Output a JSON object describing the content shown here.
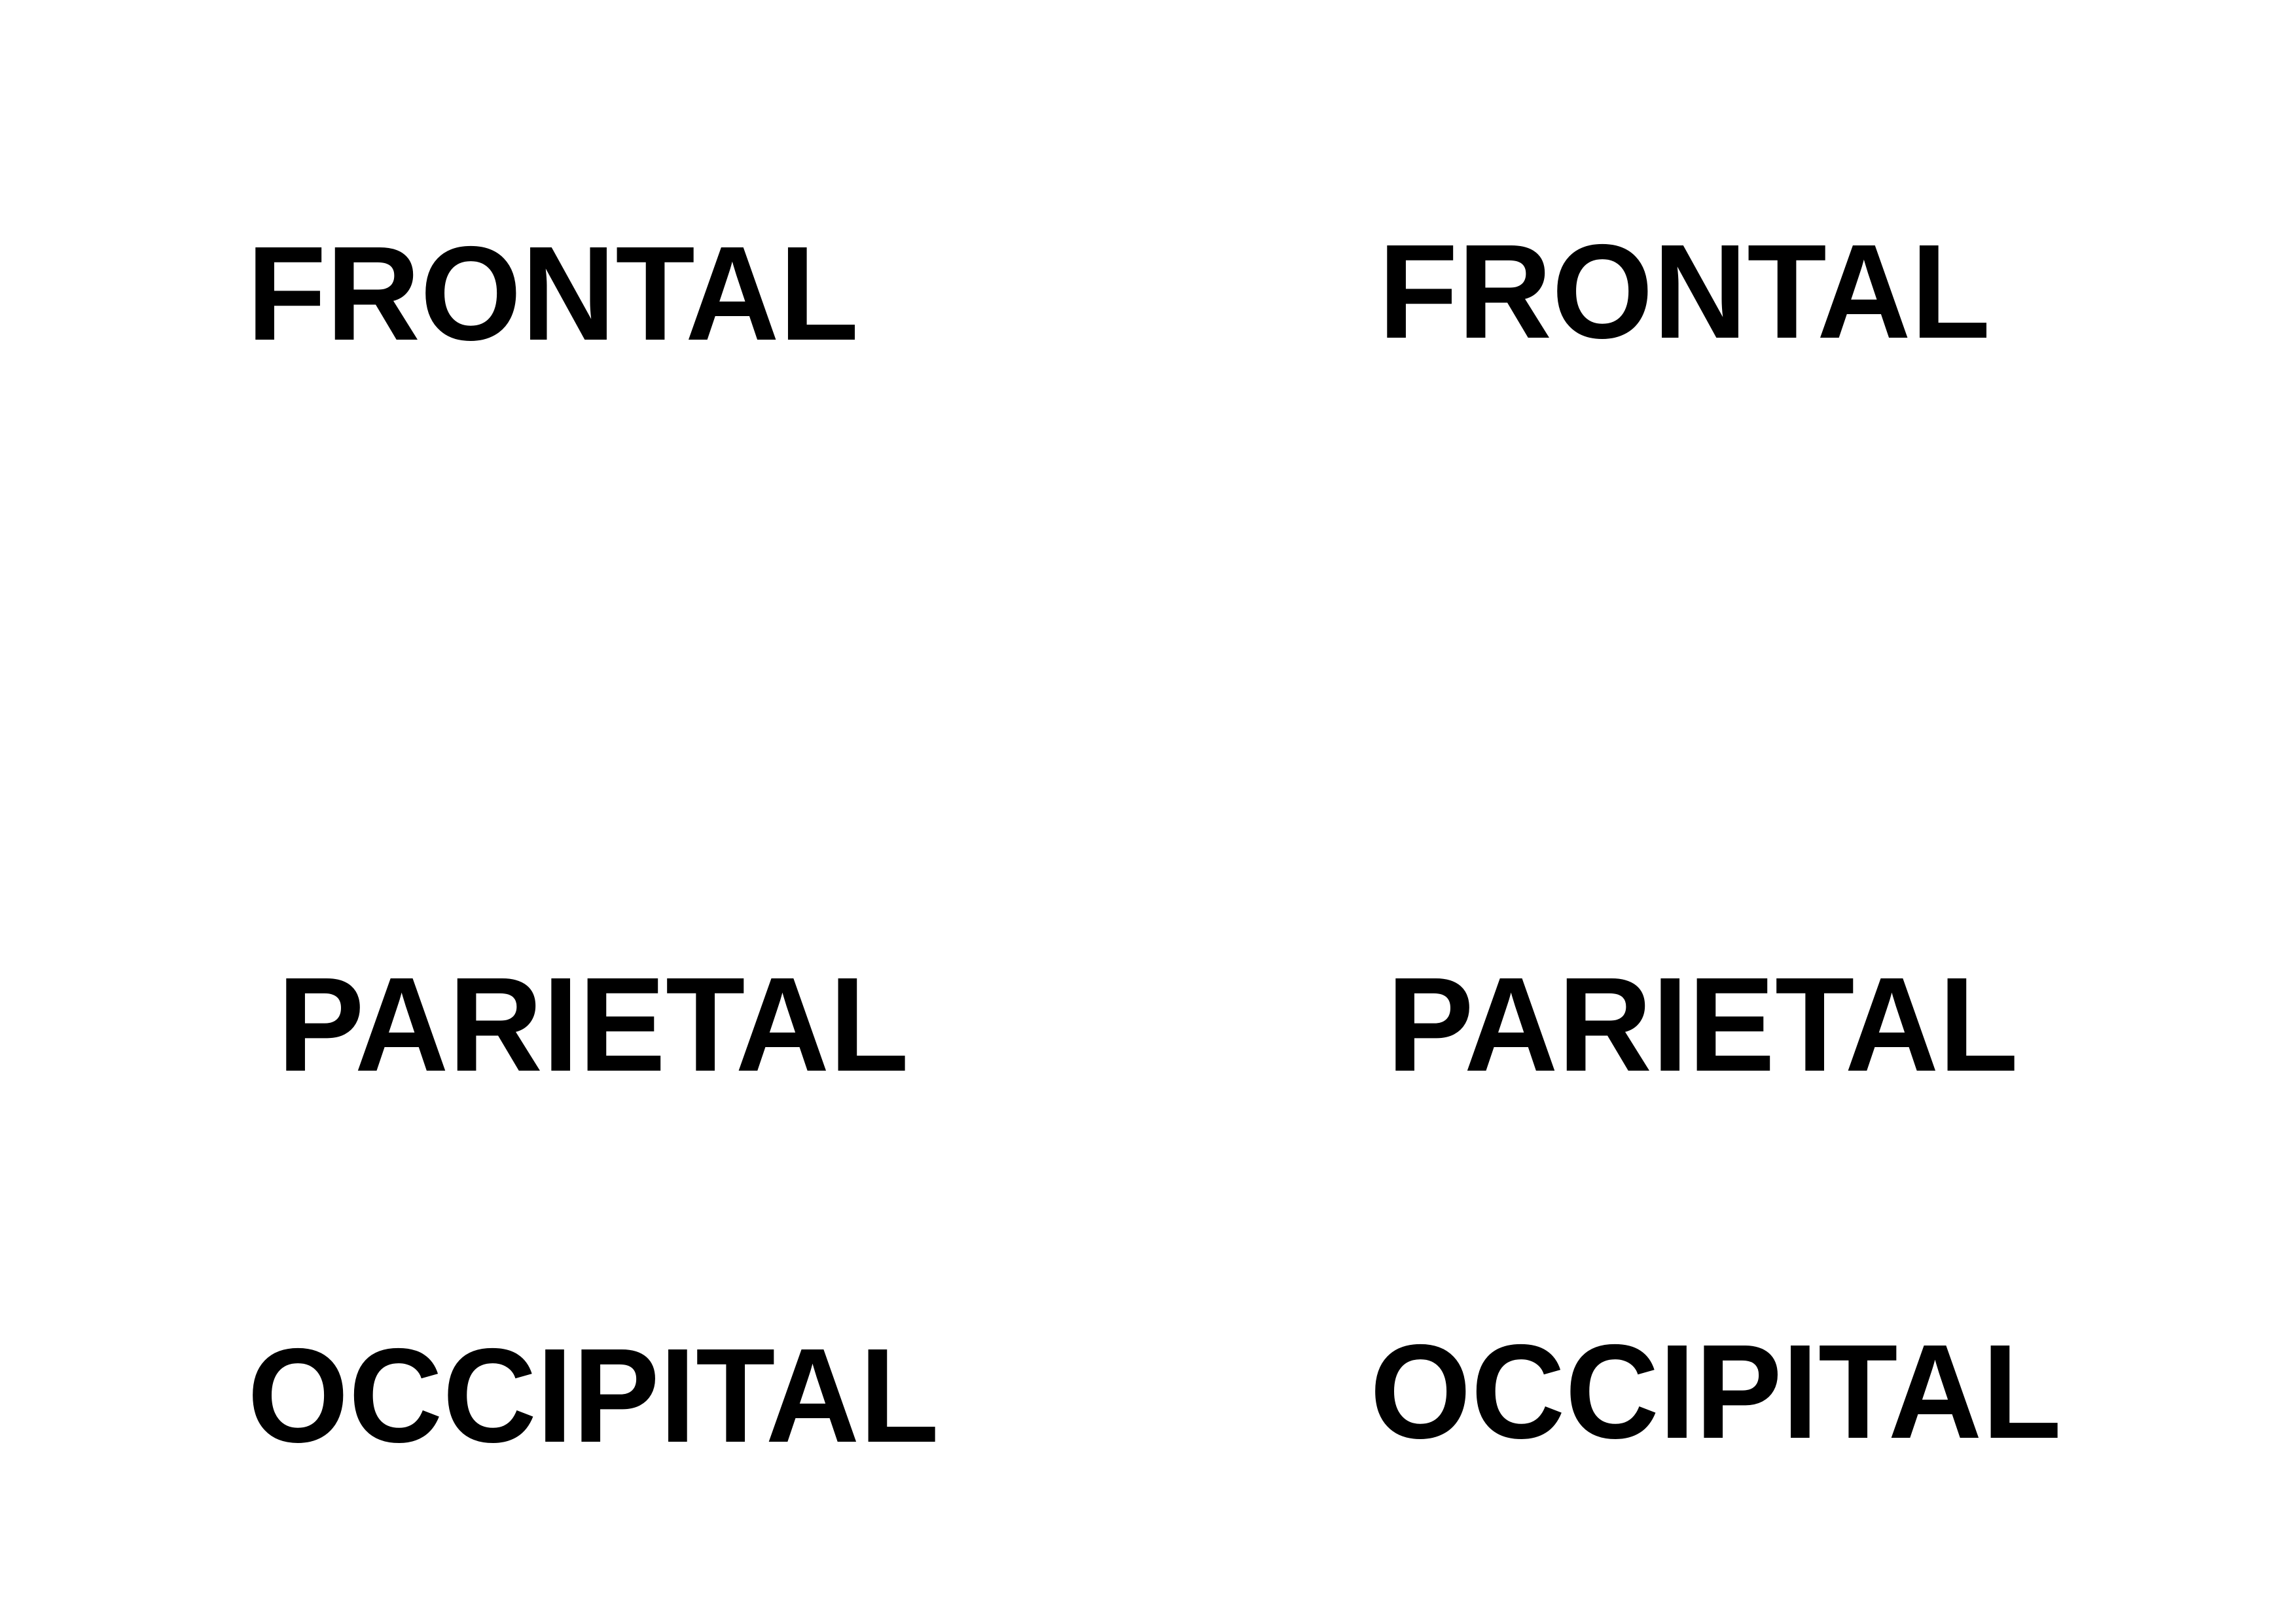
{
  "labels": {
    "row1": {
      "left": "FRONTAL",
      "right": "FRONTAL"
    },
    "row2": {
      "left": "PARIETAL",
      "right": "PARIETAL"
    },
    "row3": {
      "left": "OCCIPITAL",
      "right": "OCCIPITAL"
    }
  },
  "colors": {
    "text": "#000000",
    "background": "#ffffff"
  }
}
